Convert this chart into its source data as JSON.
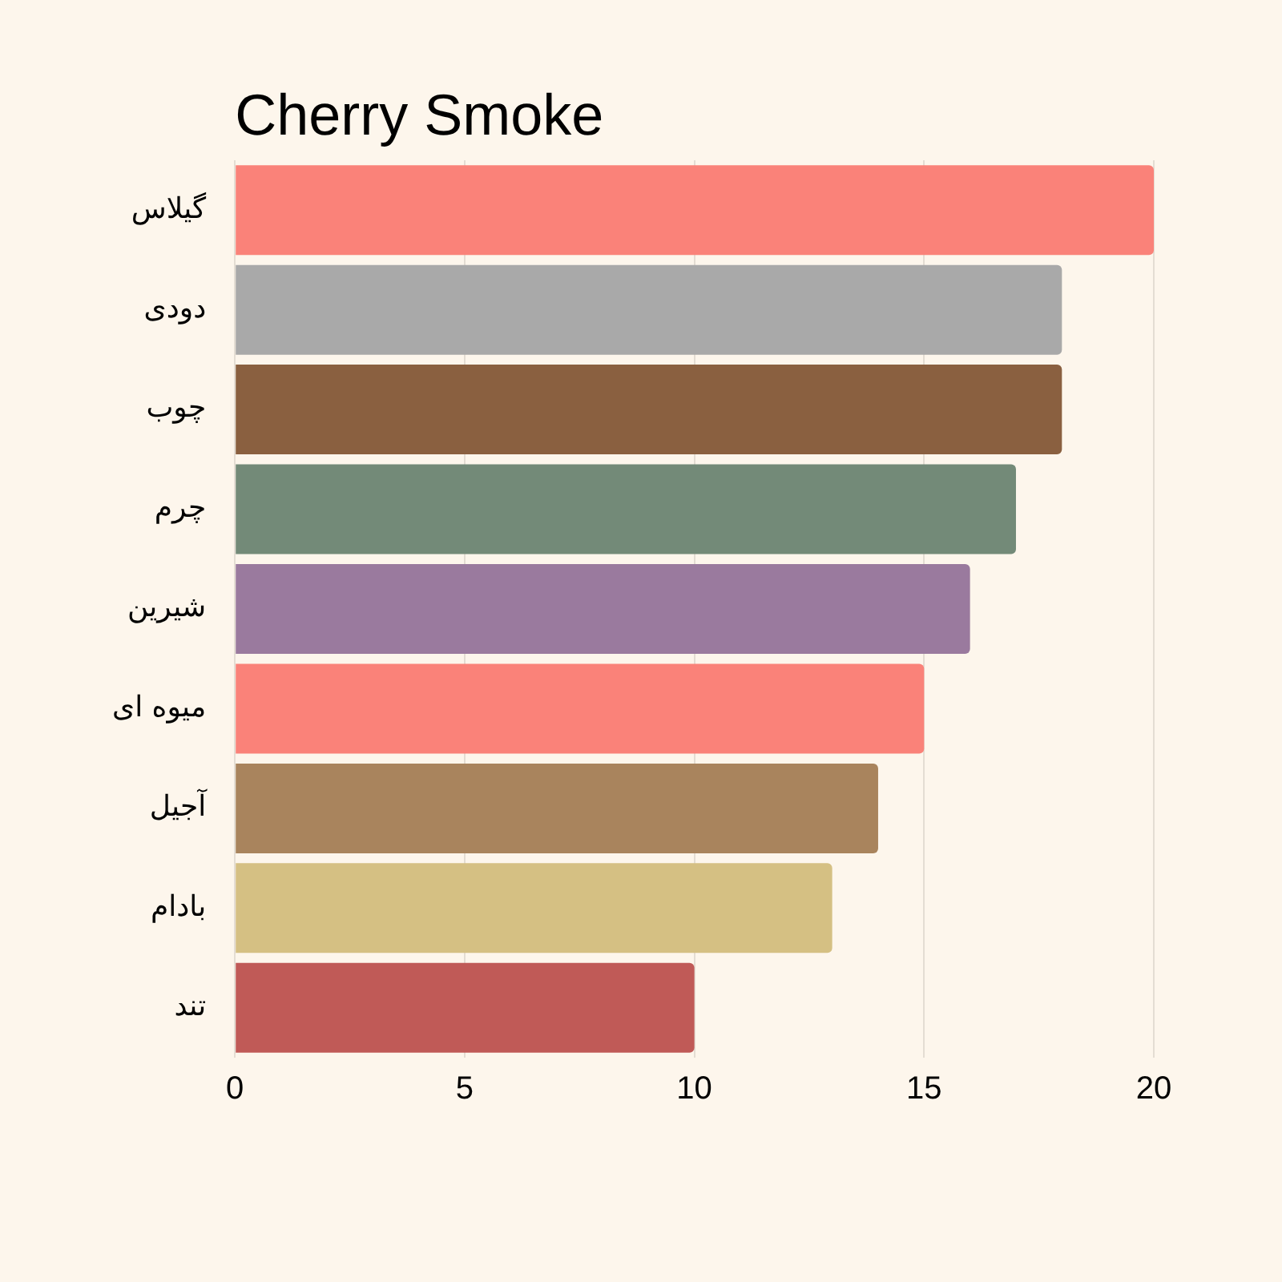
{
  "chart_data": {
    "type": "bar",
    "orientation": "horizontal",
    "title": "Cherry Smoke",
    "categories": [
      "گیلاس",
      "دودی",
      "چوب",
      "چرم",
      "شیرین",
      "میوه ای",
      "آجیل",
      "بادام",
      "تند"
    ],
    "values": [
      20,
      18,
      18,
      17,
      16,
      15,
      14,
      13,
      10
    ],
    "colors": [
      "#fa8279",
      "#a9a9a9",
      "#8a6040",
      "#738a78",
      "#9a7a9e",
      "#fa8279",
      "#a9845d",
      "#d5c083",
      "#c05a57"
    ],
    "xlim": [
      0,
      20
    ],
    "xticks": [
      0,
      5,
      10,
      15,
      20
    ],
    "grid": "x",
    "legend": false
  }
}
